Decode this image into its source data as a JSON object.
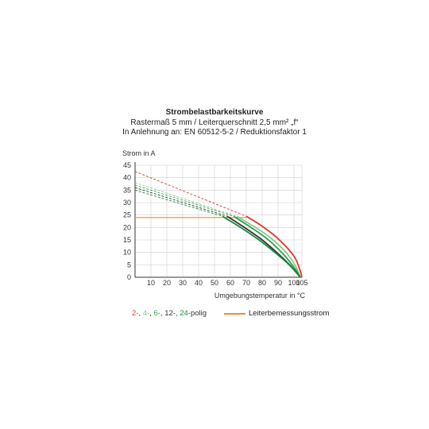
{
  "titles": {
    "title": "Strombelastbarkeitskurve",
    "line1": "Rastermaß 5 mm / Leiterquerschnitt 2,5 mm² „f“",
    "line2": "In Anlehnung an: EN 60512-5-2 / Reduktionsfaktor 1"
  },
  "legend": {
    "series_parts": [
      {
        "text": "2-",
        "color": "#e8352b"
      },
      {
        "text": ", ",
        "color": "#333333"
      },
      {
        "text": "4-",
        "color": "#8cc88c"
      },
      {
        "text": ", ",
        "color": "#333333"
      },
      {
        "text": "6-",
        "color": "#2aa84a"
      },
      {
        "text": ", 12-, ",
        "color": "#333333"
      },
      {
        "text": "24",
        "color": "#1b8a3a"
      },
      {
        "text": "-polig",
        "color": "#333333"
      }
    ],
    "rated_label": "Leiterbemessungsstrom",
    "rated_color": "#f28c28"
  },
  "chart_data": {
    "type": "line",
    "title": "Strombelastbarkeitskurve",
    "subtitle": "Rastermaß 5 mm / Leiterquerschnitt 2,5 mm² „f“ — In Anlehnung an: EN 60512-5-2 / Reduktionsfaktor 1",
    "xlabel": "Umgebungstemperatur in °C",
    "ylabel": "Strom in A",
    "xlim": [
      0,
      105
    ],
    "ylim": [
      0,
      45
    ],
    "xticks": [
      10,
      20,
      30,
      40,
      50,
      60,
      70,
      80,
      90,
      100,
      105
    ],
    "yticks": [
      0,
      5,
      10,
      15,
      20,
      25,
      30,
      35,
      40,
      45
    ],
    "grid": true,
    "legend_position": "bottom",
    "series": [
      {
        "name": "2-polig",
        "color": "#e8352b",
        "dashed_from": [
          0,
          42.5
        ],
        "solid": [
          [
            70,
            24.5
          ],
          [
            80,
            20.5
          ],
          [
            90,
            15.5
          ],
          [
            100,
            8.5
          ],
          [
            104,
            2.5
          ],
          [
            105,
            0
          ]
        ]
      },
      {
        "name": "4-polig",
        "color": "#8cc88c",
        "dashed_from": [
          0,
          38
        ],
        "solid": [
          [
            64,
            24.5
          ],
          [
            75,
            20.3
          ],
          [
            85,
            16
          ],
          [
            95,
            10
          ],
          [
            101,
            4.5
          ],
          [
            104,
            0
          ]
        ]
      },
      {
        "name": "6-polig",
        "color": "#2aa84a",
        "dashed_from": [
          0,
          37
        ],
        "solid": [
          [
            62,
            24.5
          ],
          [
            73,
            20
          ],
          [
            83,
            15.5
          ],
          [
            93,
            9.5
          ],
          [
            100,
            4
          ],
          [
            104,
            0
          ]
        ]
      },
      {
        "name": "12-polig",
        "color": "#333333",
        "dashed_from": [
          0,
          36
        ],
        "solid": [
          [
            58,
            24.5
          ],
          [
            70,
            19.5
          ],
          [
            80,
            15
          ],
          [
            90,
            9.5
          ],
          [
            98,
            4.5
          ],
          [
            104,
            0
          ]
        ]
      },
      {
        "name": "24-polig",
        "color": "#1b8a3a",
        "dashed_from": [
          0,
          35
        ],
        "solid": [
          [
            55,
            24.5
          ],
          [
            67,
            19.8
          ],
          [
            78,
            15
          ],
          [
            88,
            10
          ],
          [
            97,
            5
          ],
          [
            104,
            0
          ]
        ]
      }
    ],
    "rated_current": {
      "name": "Leiterbemessungsstrom",
      "value": 24,
      "x_range": [
        0,
        70
      ],
      "color": "#f28c28"
    }
  }
}
